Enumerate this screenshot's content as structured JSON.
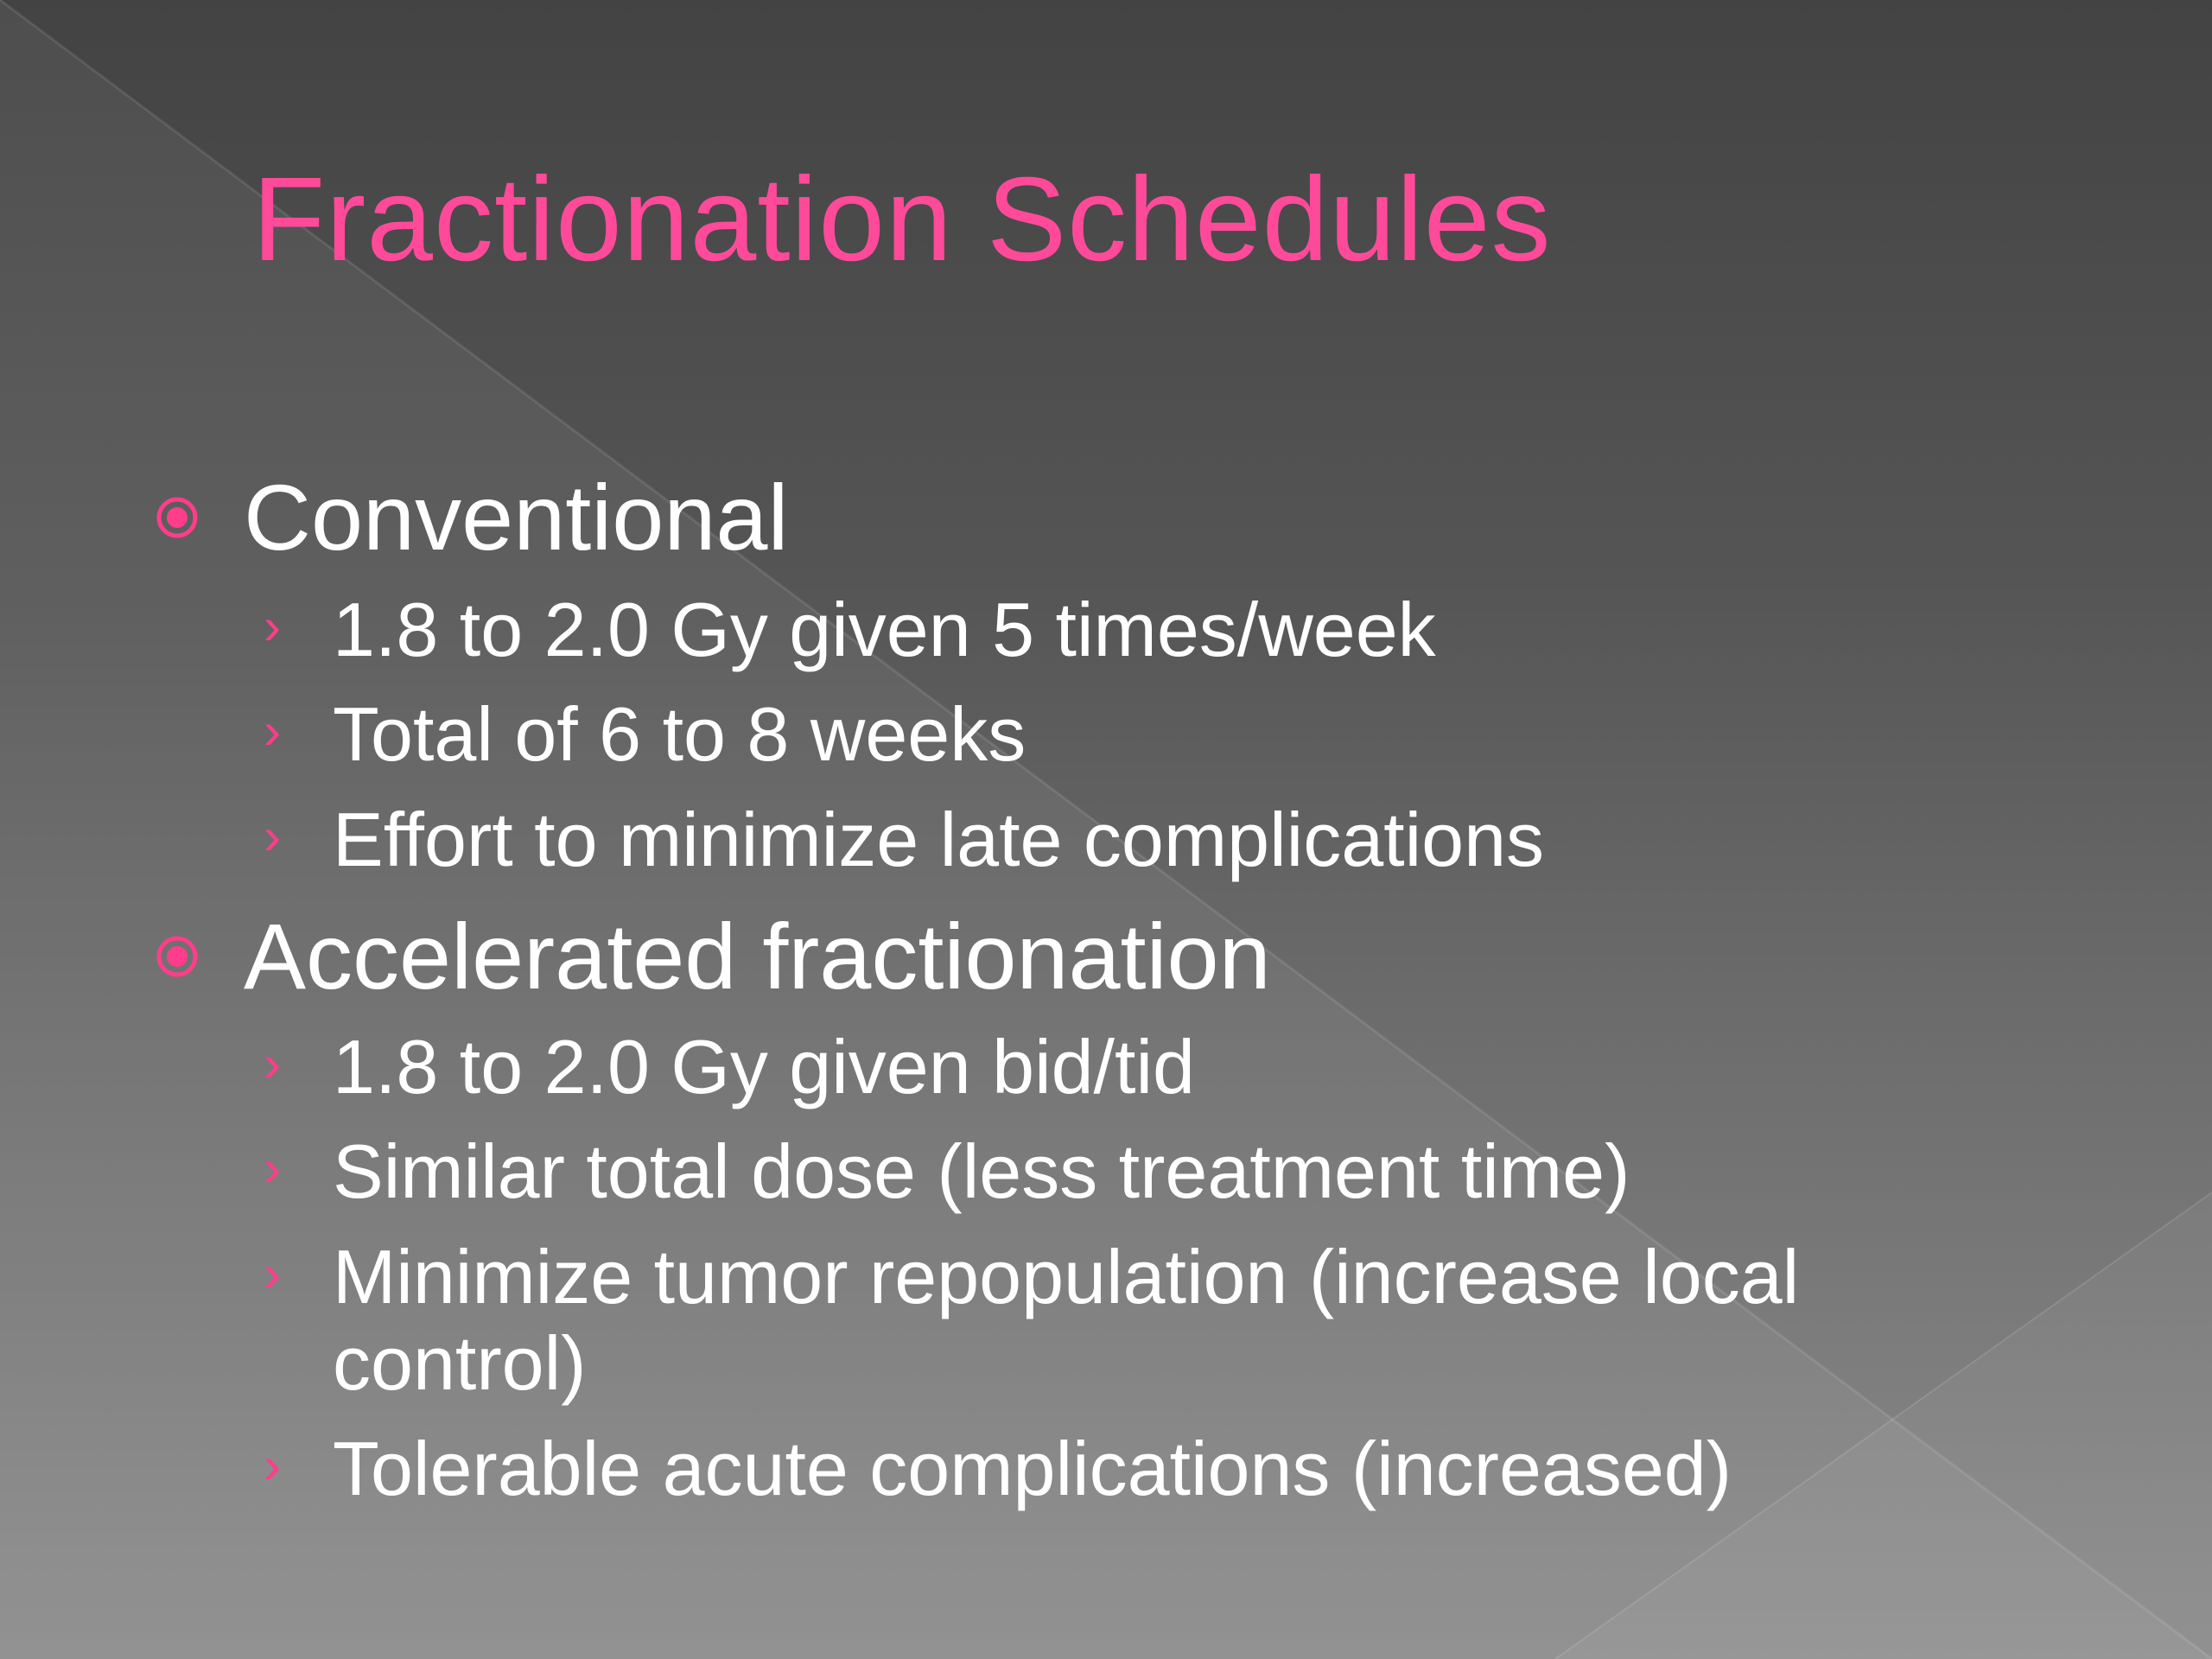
{
  "slide": {
    "title": "Fractionation Schedules",
    "accent_color": "#ff4a9a",
    "bullets": [
      {
        "label": "Conventional",
        "icon": "target-circle-icon",
        "items": [
          "1.8 to 2.0 Gy given 5 times/week",
          "Total of 6 to 8 weeks",
          "Effort to minimize late complications"
        ]
      },
      {
        "label": "Accelerated fractionation",
        "icon": "target-circle-icon",
        "items": [
          "1.8 to 2.0 Gy given bid/tid",
          "Similar total dose (less treatment time)",
          "Minimize tumor repopulation (increase local",
          "control)",
          "Tolerable acute complications (increased)"
        ]
      }
    ],
    "sub_bullet_icon": "chevron-right-icon"
  }
}
